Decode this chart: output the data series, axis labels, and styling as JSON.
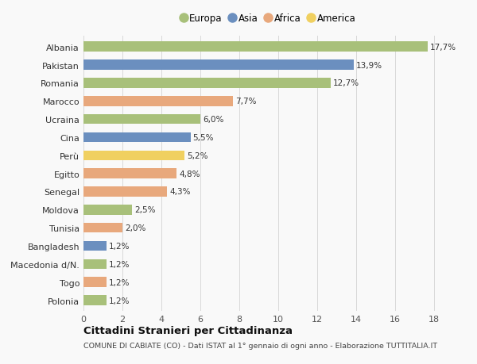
{
  "categories": [
    "Albania",
    "Pakistan",
    "Romania",
    "Marocco",
    "Ucraina",
    "Cina",
    "Perù",
    "Egitto",
    "Senegal",
    "Moldova",
    "Tunisia",
    "Bangladesh",
    "Macedonia d/N.",
    "Togo",
    "Polonia"
  ],
  "values": [
    17.7,
    13.9,
    12.7,
    7.7,
    6.0,
    5.5,
    5.2,
    4.8,
    4.3,
    2.5,
    2.0,
    1.2,
    1.2,
    1.2,
    1.2
  ],
  "labels": [
    "17,7%",
    "13,9%",
    "12,7%",
    "7,7%",
    "6,0%",
    "5,5%",
    "5,2%",
    "4,8%",
    "4,3%",
    "2,5%",
    "2,0%",
    "1,2%",
    "1,2%",
    "1,2%",
    "1,2%"
  ],
  "continents": [
    "Europa",
    "Asia",
    "Europa",
    "Africa",
    "Europa",
    "Asia",
    "America",
    "Africa",
    "Africa",
    "Europa",
    "Africa",
    "Asia",
    "Europa",
    "Africa",
    "Europa"
  ],
  "continent_colors": {
    "Europa": "#a8c07a",
    "Asia": "#6b8fbf",
    "Africa": "#e8a87c",
    "America": "#f0d060"
  },
  "legend_order": [
    "Europa",
    "Asia",
    "Africa",
    "America"
  ],
  "xlim": [
    0,
    19
  ],
  "xticks": [
    0,
    2,
    4,
    6,
    8,
    10,
    12,
    14,
    16,
    18
  ],
  "title": "Cittadini Stranieri per Cittadinanza",
  "subtitle": "COMUNE DI CABIATE (CO) - Dati ISTAT al 1° gennaio di ogni anno - Elaborazione TUTTITALIA.IT",
  "bg_color": "#f9f9f9",
  "grid_color": "#d8d8d8",
  "bar_height": 0.55,
  "label_fontsize": 7.5,
  "ytick_fontsize": 8,
  "xtick_fontsize": 8
}
